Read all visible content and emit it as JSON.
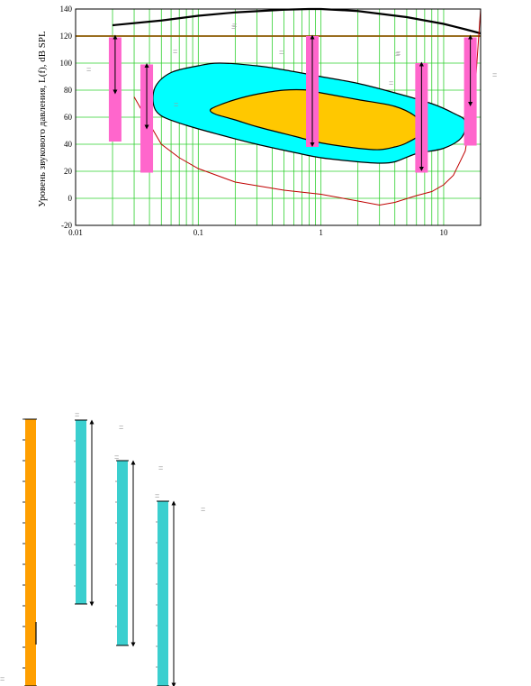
{
  "chart_data": {
    "type": "area",
    "ylabel": "Уровень звукового давления, L(f), dB SPL",
    "xscale": "log",
    "xlim": [
      0.01,
      20
    ],
    "ylim": [
      -20,
      140
    ],
    "x_ticks": [
      "0.01",
      "0.1",
      "1",
      "10"
    ],
    "y_ticks": [
      "-20",
      "0",
      "20",
      "40",
      "60",
      "80",
      "100",
      "120",
      "140"
    ],
    "grid": true,
    "series": [
      {
        "line": "pain-threshold",
        "color": "#000000",
        "x": [
          0.02,
          0.05,
          0.1,
          0.2,
          0.5,
          0.8,
          1,
          2,
          5,
          10,
          15,
          20
        ],
        "y": [
          128,
          131.5,
          135,
          137.5,
          139.5,
          140,
          140,
          138.5,
          134,
          129,
          125,
          122
        ]
      },
      {
        "line": "reference-level",
        "color": "#8b5a00",
        "x": [
          0.01,
          20
        ],
        "y": [
          120,
          120
        ]
      },
      {
        "line": "hearing-threshold",
        "color": "#c00000",
        "x": [
          0.03,
          0.04,
          0.05,
          0.07,
          0.1,
          0.2,
          0.5,
          1,
          2,
          3,
          4,
          6,
          8,
          10,
          12,
          15,
          18,
          20
        ],
        "y": [
          75,
          55,
          40,
          30,
          22,
          12,
          6,
          3,
          -2,
          -5,
          -3,
          2,
          5,
          10,
          17,
          35,
          80,
          140
        ]
      }
    ],
    "regions": [
      {
        "region": "speech-range",
        "color": "#00ffff",
        "x": [
          0.045,
          0.06,
          0.1,
          0.15,
          0.3,
          0.5,
          1,
          2,
          4,
          8,
          12,
          15,
          14,
          10,
          6,
          4,
          3,
          2,
          1,
          0.6,
          0.3,
          0.15,
          0.08,
          0.05,
          0.043
        ],
        "y": [
          83,
          93,
          98,
          100,
          98,
          95,
          90,
          85,
          78,
          70,
          63,
          57,
          45,
          37,
          33,
          27,
          26,
          27,
          30,
          34,
          40,
          47,
          54,
          61,
          70
        ]
      },
      {
        "region": "music-range",
        "color": "#ffc800",
        "x": [
          0.14,
          0.2,
          0.3,
          0.5,
          0.8,
          1,
          2,
          4,
          6,
          7,
          5,
          4,
          3,
          2,
          1,
          0.6,
          0.3,
          0.2,
          0.14,
          0.125
        ],
        "y": [
          68,
          73,
          77,
          80,
          80,
          78,
          73,
          68,
          60,
          50,
          41,
          38,
          36,
          37,
          41,
          46,
          53,
          58,
          62,
          65
        ]
      }
    ],
    "bars": [
      {
        "x": 0.021,
        "top": 119,
        "bottom": 42,
        "arrow": [
          120,
          78
        ]
      },
      {
        "x": 0.038,
        "top": 99,
        "bottom": 19,
        "arrow": [
          99,
          52
        ]
      },
      {
        "x": 0.85,
        "top": 120,
        "bottom": 38,
        "arrow": [
          120,
          39
        ]
      },
      {
        "x": 6.6,
        "top": 100,
        "bottom": 19,
        "arrow": [
          100,
          21
        ]
      },
      {
        "x": 16.5,
        "top": 119,
        "bottom": 39,
        "arrow": [
          120,
          69
        ]
      }
    ],
    "columns": [
      {
        "column": "orange",
        "color": "#ff9f00",
        "top": 465,
        "bottom": 761
      },
      {
        "column": "cyan-1",
        "color": "#3bcfcf",
        "top": 466,
        "bottom": 670
      },
      {
        "column": "cyan-2",
        "color": "#3bcfcf",
        "top": 511,
        "bottom": 716
      },
      {
        "column": "cyan-3",
        "color": "#3bcfcf",
        "top": 556,
        "bottom": 761
      }
    ],
    "marks": [
      "=",
      "=",
      "=",
      "=",
      "=",
      "=",
      "=",
      "=",
      "=",
      "=",
      "=",
      "=",
      "=",
      "=",
      "=",
      "=",
      "="
    ]
  }
}
